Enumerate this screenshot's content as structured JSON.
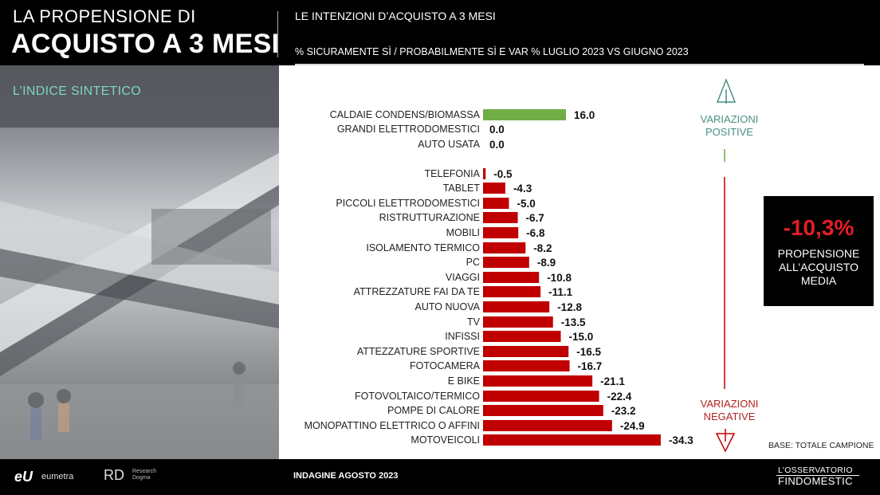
{
  "header": {
    "title_line1": "LA PROPENSIONE DI",
    "title_line2": "ACQUISTO A 3 MESI",
    "subtitle_line1": "LE INTENZIONI D’ACQUISTO A 3 MESI",
    "subtitle_line2": "% SICURAMENTE SÌ  / PROBABILMENTE SÌ  E VAR % LUGLIO 2023 VS GIUGNO 2023"
  },
  "side": {
    "label": "L’INDICE SINTETICO"
  },
  "annotations": {
    "positive": "VARIAZIONI POSITIVE",
    "positive_l1": "VARIAZIONI",
    "positive_l2": "POSITIVE",
    "negative": "VARIAZIONI NEGATIVE",
    "negative_l1": "VARIAZIONI",
    "negative_l2": "NEGATIVE",
    "base": "BASE: TOTALE CAMPIONE"
  },
  "summary": {
    "value": "-10,3%",
    "label": "PROPENSIONE ALL’ACQUISTO MEDIA",
    "label_l1": "PROPENSIONE",
    "label_l2": "ALL’ACQUISTO",
    "label_l3": "MEDIA"
  },
  "footer": {
    "logo1_mark": "eU",
    "logo1_text": "eumetra",
    "logo2_mark": "RD",
    "logo2_text": "Research Dogma",
    "survey": "INDAGINE AGOSTO  2023",
    "brand_line1": "L’OSSERVATORIO",
    "brand_line2": "FINDOMESTIC"
  },
  "colors": {
    "positive": "#70ad47",
    "negative": "#c00000",
    "accent": "#7fd3c6"
  },
  "chart_data": {
    "type": "bar",
    "orientation": "horizontal",
    "title": "LE INTENZIONI D’ACQUISTO A 3 MESI",
    "xlim": [
      -35,
      16
    ],
    "grid": false,
    "categories": [
      "CALDAIE CONDENS/BIOMASSA",
      "GRANDI ELETTRODOMESTICI",
      "AUTO USATA",
      "TELEFONIA",
      "TABLET",
      "PICCOLI ELETTRODOMESTICI",
      "RISTRUTTURAZIONE",
      "MOBILI",
      "ISOLAMENTO TERMICO",
      "PC",
      "VIAGGI",
      "ATTREZZATURE FAI DA TE",
      "AUTO NUOVA",
      "TV",
      "INFISSI",
      "ATTEZZATURE SPORTIVE",
      "FOTOCAMERA",
      "E BIKE",
      "FOTOVOLTAICO/TERMICO",
      "POMPE DI CALORE",
      "MONOPATTINO ELETTRICO O AFFINI",
      "MOTOVEICOLI"
    ],
    "values": [
      16.0,
      0.0,
      0.0,
      -0.5,
      -4.3,
      -5.0,
      -6.7,
      -6.8,
      -8.2,
      -8.9,
      -10.8,
      -11.1,
      -12.8,
      -13.5,
      -15.0,
      -16.5,
      -16.7,
      -21.1,
      -22.4,
      -23.2,
      -24.9,
      -34.3
    ],
    "value_labels": [
      "16.0",
      "0.0",
      "0.0",
      "-0.5",
      "-4.3",
      "-5.0",
      "-6.7",
      "-6.8",
      "-8.2",
      "-8.9",
      "-10.8",
      "-11.1",
      "-12.8",
      "-13.5",
      "-15.0",
      "-16.5",
      "-16.7",
      "-21.1",
      "-22.4",
      "-23.2",
      "-24.9",
      "-34.3"
    ]
  }
}
